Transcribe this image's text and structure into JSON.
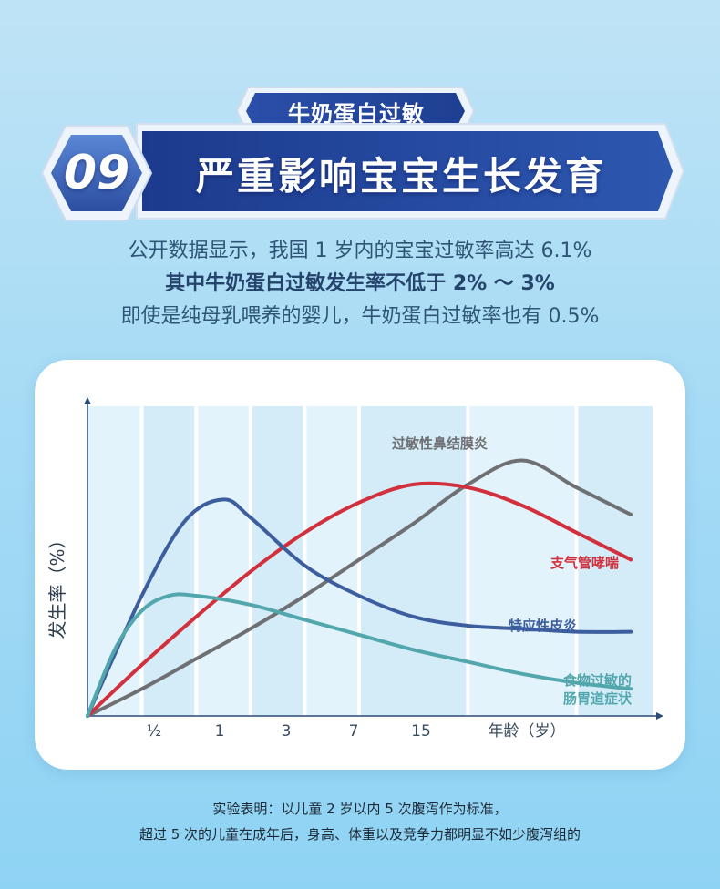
{
  "header": {
    "subtitle_tag": "牛奶蛋白过敏",
    "number": "09",
    "title": "严重影响宝宝生长发育"
  },
  "intro": {
    "line1": "公开数据显示，我国 1 岁内的宝宝过敏率高达 6.1%",
    "line2": "其中牛奶蛋白过敏发生率不低于 2% ～ 3%",
    "line3": "即使是纯母乳喂养的婴儿，牛奶蛋白过敏率也有 0.5%"
  },
  "colors": {
    "navy": "#1f3f8a",
    "blue_banner": "#2a4fa6",
    "text_blue": "#2f5576",
    "gray_series": "#6e7073",
    "red_series": "#d1303c",
    "blue_series": "#3d5e9e",
    "teal_series": "#52a7ac"
  },
  "chart_data": {
    "type": "line",
    "xlabel": "年龄（岁）",
    "ylabel": "发生率（%）",
    "x_ticks": [
      "½",
      "1",
      "3",
      "7",
      "15"
    ],
    "series": [
      {
        "name": "过敏性鼻结膜炎",
        "color": "#6e7073",
        "points": [
          [
            0,
            0
          ],
          [
            0.5,
            0.09
          ],
          [
            1,
            0.19
          ],
          [
            1.5,
            0.29
          ],
          [
            2,
            0.4
          ],
          [
            2.5,
            0.52
          ],
          [
            3,
            0.64
          ],
          [
            3.5,
            0.77
          ],
          [
            4,
            0.85
          ],
          [
            4.5,
            0.76
          ],
          [
            5,
            0.67
          ]
        ]
      },
      {
        "name": "支气管哮喘",
        "color": "#d1303c",
        "points": [
          [
            0,
            0
          ],
          [
            0.5,
            0.17
          ],
          [
            1,
            0.33
          ],
          [
            1.5,
            0.48
          ],
          [
            2,
            0.61
          ],
          [
            2.5,
            0.71
          ],
          [
            3,
            0.77
          ],
          [
            3.5,
            0.76
          ],
          [
            4,
            0.7
          ],
          [
            4.5,
            0.61
          ],
          [
            5,
            0.52
          ]
        ]
      },
      {
        "name": "特应性皮炎",
        "color": "#3d5e9e",
        "points": [
          [
            0,
            0
          ],
          [
            0.5,
            0.4
          ],
          [
            0.9,
            0.65
          ],
          [
            1.25,
            0.72
          ],
          [
            1.5,
            0.66
          ],
          [
            2,
            0.5
          ],
          [
            2.5,
            0.4
          ],
          [
            3,
            0.33
          ],
          [
            3.5,
            0.3
          ],
          [
            4,
            0.29
          ],
          [
            4.5,
            0.28
          ],
          [
            5,
            0.28
          ]
        ]
      },
      {
        "name": "食物过敏的\n肠胃道症状",
        "name_lines": [
          "食物过敏的",
          "肠胃道症状"
        ],
        "color": "#52a7ac",
        "points": [
          [
            0,
            0
          ],
          [
            0.25,
            0.22
          ],
          [
            0.5,
            0.35
          ],
          [
            0.75,
            0.4
          ],
          [
            1,
            0.4
          ],
          [
            1.5,
            0.37
          ],
          [
            2,
            0.32
          ],
          [
            2.5,
            0.27
          ],
          [
            3,
            0.22
          ],
          [
            3.5,
            0.18
          ],
          [
            4,
            0.14
          ],
          [
            4.5,
            0.11
          ],
          [
            5,
            0.09
          ]
        ]
      }
    ],
    "legend": "inline labels at line ends",
    "grid": "vertical bands",
    "xlim": [
      0,
      5.2
    ],
    "ylim": [
      0,
      1
    ]
  },
  "footer": {
    "line1": "实验表明：以儿童 2 岁以内 5 次腹泻作为标准，",
    "line2": "超过 5 次的儿童在成年后，身高、体重以及竞争力都明显不如少腹泻组的"
  }
}
